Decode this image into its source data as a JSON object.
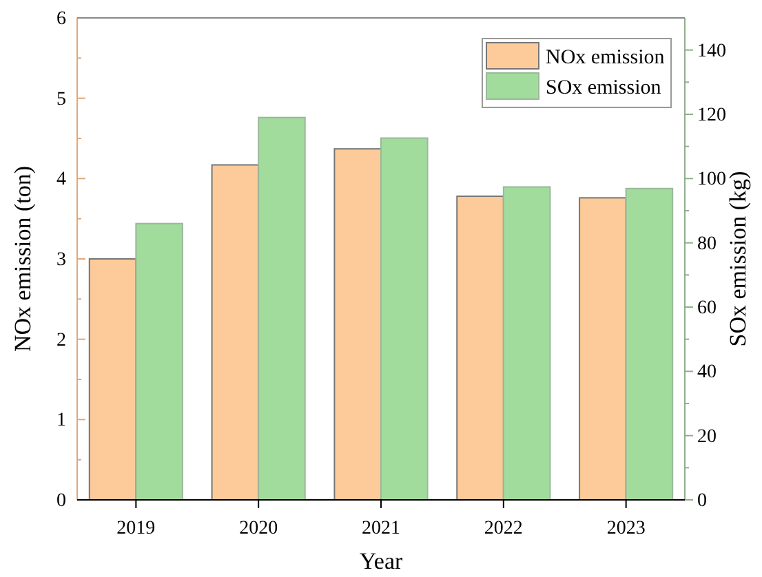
{
  "chart_data": {
    "type": "bar",
    "xlabel": "Year",
    "ylabel": "NOx emission (ton)",
    "y2label": "SOx emission (kg)",
    "categories": [
      "2019",
      "2020",
      "2021",
      "2022",
      "2023"
    ],
    "series": [
      {
        "name": "NOx emission",
        "color": "#fdca9a",
        "values": [
          3.0,
          4.17,
          4.37,
          3.78,
          3.76
        ]
      },
      {
        "name": "SOx emission",
        "color": "#a2dc9c",
        "axis": "y2",
        "values": [
          86,
          119,
          112.6,
          97.4,
          96.9
        ]
      }
    ],
    "ylim": [
      0,
      6
    ],
    "yticks": [
      0,
      {
        "value": 0.5,
        "label": null
      },
      1,
      {
        "value": 1.5,
        "label": null
      },
      2,
      {
        "value": 2.5,
        "label": null
      },
      3,
      {
        "value": 3.5,
        "label": null
      },
      4,
      {
        "value": 4.5,
        "label": null
      },
      5,
      {
        "value": 5.5,
        "label": null
      },
      6
    ],
    "y2lim": [
      0,
      150
    ],
    "y2ticks": [
      0,
      {
        "value": 10,
        "label": null
      },
      20,
      {
        "value": 30,
        "label": null
      },
      40,
      {
        "value": 50,
        "label": null
      },
      60,
      {
        "value": 70,
        "label": null
      },
      80,
      {
        "value": 90,
        "label": null
      },
      100,
      {
        "value": 110,
        "label": null
      },
      120,
      {
        "value": 130,
        "label": null
      },
      140
    ],
    "legend": "top right",
    "grid": false
  }
}
